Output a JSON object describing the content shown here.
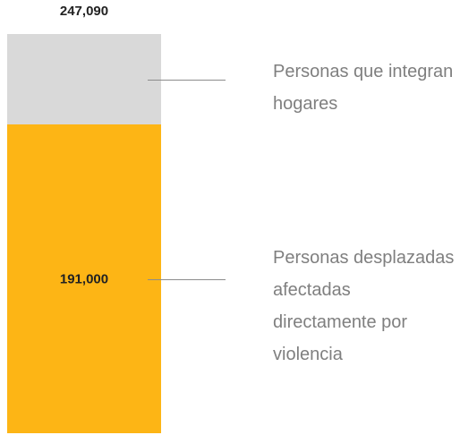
{
  "chart_data": {
    "type": "stacked-bar",
    "total": 247090,
    "total_label": "247,090",
    "series": [
      {
        "name": "Personas desplazadas afectadas directamente por violencia",
        "color": "#fdb515",
        "values": [
          191000
        ],
        "value_labels": [
          "191,000"
        ]
      },
      {
        "name": "Personas que integran hogares",
        "color": "#d9d9d9",
        "values": [
          56090
        ]
      }
    ]
  }
}
